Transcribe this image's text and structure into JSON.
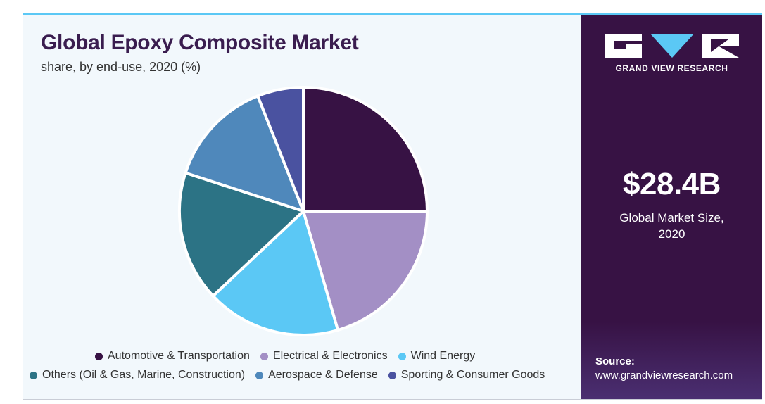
{
  "title": "Global Epoxy Composite Market",
  "subtitle": "share, by end-use, 2020 (%)",
  "chart_data": {
    "type": "pie",
    "title": "Global Epoxy Composite Market",
    "subtitle": "share, by end-use, 2020 (%)",
    "start_angle_deg": 0,
    "direction": "clockwise",
    "legend_position": "bottom",
    "slices": [
      {
        "name": "Automotive & Transportation",
        "value": 25.0,
        "color": "#371244"
      },
      {
        "name": "Electrical & Electronics",
        "value": 20.5,
        "color": "#a38fc5"
      },
      {
        "name": "Wind Energy",
        "value": 17.5,
        "color": "#5bc8f5"
      },
      {
        "name": "Others (Oil & Gas, Marine, Construction)",
        "value": 17.0,
        "color": "#2c7385"
      },
      {
        "name": "Aerospace & Defense",
        "value": 14.0,
        "color": "#4f88bb"
      },
      {
        "name": "Sporting & Consumer Goods",
        "value": 6.0,
        "color": "#4a52a0"
      }
    ]
  },
  "legend": {
    "row1": [
      {
        "label": "Automotive & Transportation",
        "color": "#371244"
      },
      {
        "label": "Electrical & Electronics",
        "color": "#a38fc5"
      },
      {
        "label": "Wind Energy",
        "color": "#5bc8f5"
      }
    ],
    "row2": [
      {
        "label": "Others (Oil & Gas, Marine, Construction)",
        "color": "#2c7385"
      },
      {
        "label": "Aerospace & Defense",
        "color": "#4f88bb"
      },
      {
        "label": "Sporting & Consumer Goods",
        "color": "#4a52a0"
      }
    ]
  },
  "brand": {
    "name": "GRAND VIEW RESEARCH",
    "logo_icon": "gvr-logo-icon",
    "panel_color": "#371244",
    "accent_color": "#5bc8f5"
  },
  "stat": {
    "value": "$28.4B",
    "label_line1": "Global Market Size,",
    "label_line2": "2020"
  },
  "source": {
    "label": "Source:",
    "url": "www.grandviewresearch.com"
  }
}
